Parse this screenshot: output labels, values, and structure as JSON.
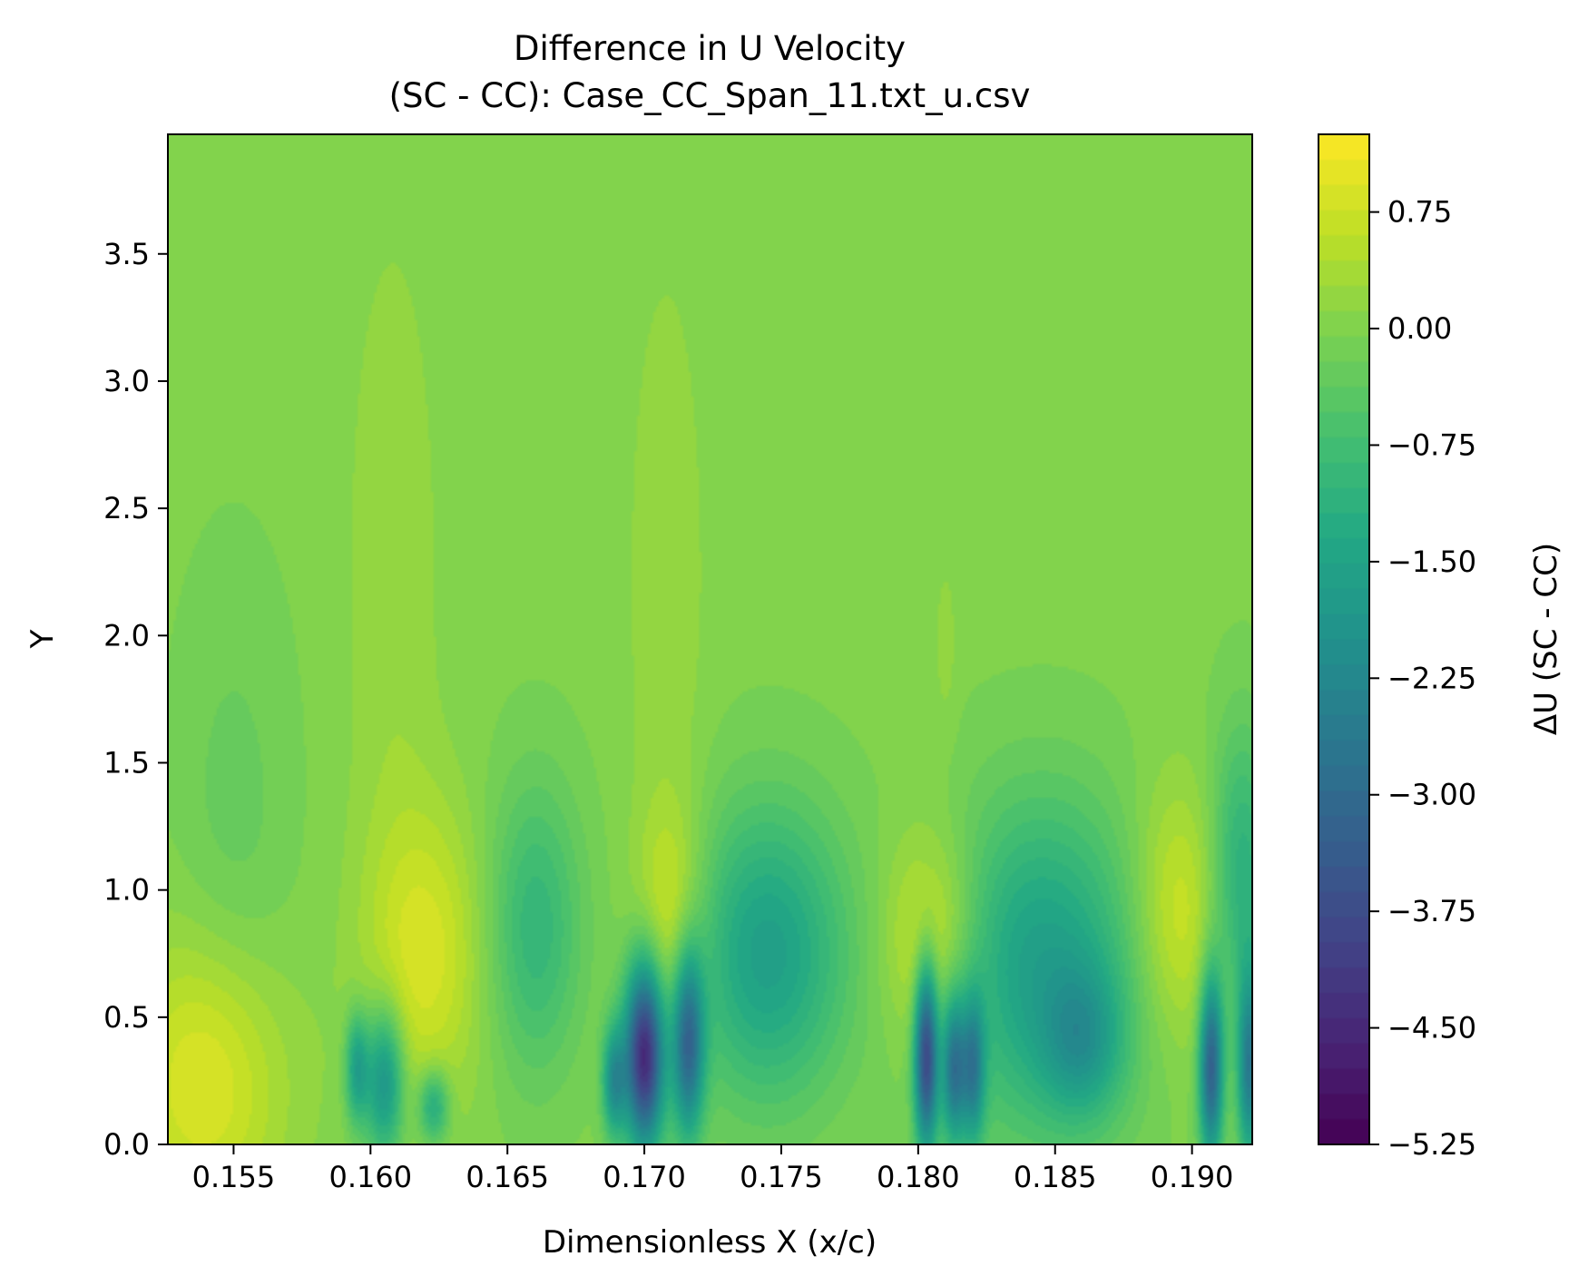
{
  "chart_data": {
    "type": "heatmap",
    "title": "Difference in U Velocity\n(SC - CC): Case_CC_Span_11.txt_u.csv",
    "xlabel": "Dimensionless X (x/c)",
    "ylabel": "Y",
    "colorbar_label": "ΔU (SC - CC)",
    "colormap": "viridis",
    "xlim": [
      0.1526,
      0.1922
    ],
    "ylim": [
      0,
      3.97
    ],
    "clim": [
      -5.25,
      1.25
    ],
    "x_ticks": [
      0.155,
      0.16,
      0.165,
      0.17,
      0.175,
      0.18,
      0.185,
      0.19
    ],
    "x_tick_labels": [
      "0.155",
      "0.160",
      "0.165",
      "0.170",
      "0.175",
      "0.180",
      "0.185",
      "0.190"
    ],
    "y_ticks": [
      0,
      0.5,
      1,
      1.5,
      2,
      2.5,
      3,
      3.5
    ],
    "y_tick_labels": [
      "0.0",
      "0.5",
      "1.0",
      "1.5",
      "2.0",
      "2.5",
      "3.0",
      "3.5"
    ],
    "colorbar_ticks": [
      0.75,
      0,
      -0.75,
      -1.5,
      -2.25,
      -3,
      -3.75,
      -4.5,
      -5.25
    ],
    "colorbar_tick_labels": [
      "0.75",
      "0.00",
      "−0.75",
      "−1.50",
      "−2.25",
      "−3.00",
      "−3.75",
      "−4.50",
      "−5.25"
    ],
    "background_value": 0,
    "features": [
      {
        "x": 0.154,
        "y": 0.25,
        "sx": 0.002,
        "sy": 0.4,
        "amp": 1.0
      },
      {
        "x": 0.162,
        "y": 0.75,
        "sx": 0.0015,
        "sy": 0.4,
        "amp": 0.85
      },
      {
        "x": 0.166,
        "y": 0.85,
        "sx": 0.0012,
        "sy": 0.4,
        "amp": -1.0
      },
      {
        "x": 0.171,
        "y": 0.9,
        "sx": 0.0009,
        "sy": 0.3,
        "amp": 0.85
      },
      {
        "x": 0.1745,
        "y": 0.75,
        "sx": 0.002,
        "sy": 0.4,
        "amp": -1.6
      },
      {
        "x": 0.1805,
        "y": 0.8,
        "sx": 0.0012,
        "sy": 0.3,
        "amp": 1.0
      },
      {
        "x": 0.1845,
        "y": 0.7,
        "sx": 0.0025,
        "sy": 0.45,
        "amp": -1.6
      },
      {
        "x": 0.1895,
        "y": 0.9,
        "sx": 0.0012,
        "sy": 0.35,
        "amp": 0.85
      },
      {
        "x": 0.1918,
        "y": 1.05,
        "sx": 0.0008,
        "sy": 0.4,
        "amp": -1.2
      },
      {
        "x": 0.17,
        "y": 0.35,
        "sx": 0.0005,
        "sy": 0.25,
        "amp": -4.5
      },
      {
        "x": 0.1716,
        "y": 0.4,
        "sx": 0.0004,
        "sy": 0.25,
        "amp": -3.0
      },
      {
        "x": 0.1689,
        "y": 0.25,
        "sx": 0.0003,
        "sy": 0.15,
        "amp": -2.0
      },
      {
        "x": 0.1803,
        "y": 0.35,
        "sx": 0.0003,
        "sy": 0.25,
        "amp": -3.8
      },
      {
        "x": 0.1813,
        "y": 0.3,
        "sx": 0.0003,
        "sy": 0.2,
        "amp": -2.5
      },
      {
        "x": 0.182,
        "y": 0.3,
        "sx": 0.0003,
        "sy": 0.2,
        "amp": -2.2
      },
      {
        "x": 0.1907,
        "y": 0.3,
        "sx": 0.0003,
        "sy": 0.25,
        "amp": -3.2
      },
      {
        "x": 0.1921,
        "y": 0.3,
        "sx": 0.0003,
        "sy": 0.25,
        "amp": -2.5
      },
      {
        "x": 0.1605,
        "y": 0.25,
        "sx": 0.0005,
        "sy": 0.2,
        "amp": -2.0
      },
      {
        "x": 0.1595,
        "y": 0.3,
        "sx": 0.0003,
        "sy": 0.15,
        "amp": -1.6
      },
      {
        "x": 0.1623,
        "y": 0.15,
        "sx": 0.0004,
        "sy": 0.1,
        "amp": -1.4
      },
      {
        "x": 0.186,
        "y": 0.4,
        "sx": 0.001,
        "sy": 0.2,
        "amp": -1.2
      },
      {
        "x": 0.1608,
        "y": 2.2,
        "sx": 0.0012,
        "sy": 1.0,
        "amp": 0.25
      },
      {
        "x": 0.1708,
        "y": 2.2,
        "sx": 0.001,
        "sy": 0.9,
        "amp": 0.25
      },
      {
        "x": 0.155,
        "y": 1.2,
        "sx": 0.0015,
        "sy": 0.7,
        "amp": -0.3
      },
      {
        "x": 0.181,
        "y": 1.95,
        "sx": 0.0003,
        "sy": 0.25,
        "amp": 0.2
      }
    ]
  }
}
